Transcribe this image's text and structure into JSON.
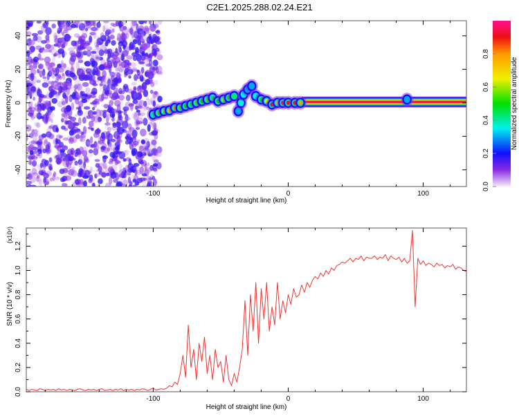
{
  "title": "C2E1.2025.288.02.24.E21",
  "chart_data": [
    {
      "type": "heatmap",
      "name": "spectrogram",
      "xlabel": "Height of straight line (km)",
      "ylabel": "Frequency (Hz)",
      "xlim": [
        -194,
        132
      ],
      "ylim": [
        -50,
        49
      ],
      "xticks": [
        -100,
        0,
        100
      ],
      "xtick_labels": [
        "-100",
        "0",
        "100"
      ],
      "yticks": [
        40,
        20,
        0,
        -20,
        -40
      ],
      "ytick_labels": [
        "40",
        "20",
        "0",
        "-20",
        "-40"
      ],
      "colorbar": {
        "label": "Normalized spectral amplitude",
        "range": [
          0,
          1
        ],
        "ticks": [
          0.0,
          0.2,
          0.4,
          0.6,
          0.8
        ],
        "tick_labels": [
          "0.0",
          "0.2",
          "0.4",
          "0.6",
          "0.8"
        ]
      },
      "noise_region": {
        "x_range": [
          -194,
          -95
        ],
        "freq_range": [
          -50,
          49
        ],
        "amplitude_max": 0.15
      },
      "ridge": [
        [
          -100,
          -7,
          0.4
        ],
        [
          -96,
          -6,
          0.55
        ],
        [
          -92,
          -5,
          0.6
        ],
        [
          -88,
          -4.5,
          0.75
        ],
        [
          -84,
          -3,
          0.8
        ],
        [
          -80,
          -3,
          0.55
        ],
        [
          -76,
          -2,
          0.5
        ],
        [
          -72,
          -1,
          0.45
        ],
        [
          -68,
          0,
          0.55
        ],
        [
          -64,
          1,
          0.5
        ],
        [
          -60,
          2,
          0.55
        ],
        [
          -56,
          3,
          0.45
        ],
        [
          -52,
          1,
          0.5
        ],
        [
          -48,
          2,
          0.6
        ],
        [
          -44,
          3,
          0.5
        ],
        [
          -40,
          4,
          0.45
        ],
        [
          -37,
          -5,
          0.3
        ],
        [
          -35,
          0,
          0.35
        ],
        [
          -33,
          5,
          0.35
        ],
        [
          -30,
          8,
          0.3
        ],
        [
          -27,
          10,
          0.3
        ],
        [
          -24,
          4,
          0.35
        ],
        [
          -20,
          2,
          0.5
        ],
        [
          -16,
          1,
          0.65
        ],
        [
          -12,
          -1,
          0.9
        ],
        [
          -8,
          0,
          0.75
        ],
        [
          -4,
          0,
          0.95
        ],
        [
          0,
          0,
          0.9
        ],
        [
          5,
          0,
          0.9
        ],
        [
          9,
          0,
          0.8
        ],
        [
          88,
          2,
          0.3
        ]
      ],
      "band": {
        "x_range": [
          10,
          132
        ],
        "freq": 0.5,
        "amplitude": 0.95
      }
    },
    {
      "type": "line",
      "name": "snr",
      "xlabel": "Height of straight line (km)",
      "ylabel": "SNR (10 * v/v)",
      "yscale_label": "(x10⁴)",
      "xlim": [
        -194,
        132
      ],
      "ylim": [
        0,
        1.35
      ],
      "xticks": [
        -100,
        0,
        100
      ],
      "xtick_labels": [
        "-100",
        "0",
        "100"
      ],
      "yticks": [
        0.0,
        0.2,
        0.4,
        0.6,
        0.8,
        1.0,
        1.2
      ],
      "ytick_labels": [
        "0.0",
        "0.2",
        "0.4",
        "0.6",
        "0.8",
        "1.0",
        "1.2"
      ],
      "color": "#ee3333",
      "x_start": -194,
      "x_step": 2,
      "values": [
        0.02,
        0.01,
        0.02,
        0.015,
        0.01,
        0.025,
        0.02,
        0.01,
        0.02,
        0.015,
        0.02,
        0.01,
        0.025,
        0.015,
        0.02,
        0.01,
        0.02,
        0.015,
        0.01,
        0.02,
        0.025,
        0.015,
        0.01,
        0.02,
        0.015,
        0.02,
        0.01,
        0.02,
        0.025,
        0.01,
        0.015,
        0.02,
        0.01,
        0.02,
        0.015,
        0.025,
        0.01,
        0.02,
        0.015,
        0.02,
        0.01,
        0.02,
        0.015,
        0.025,
        0.02,
        0.01,
        0.02,
        0.03,
        0.015,
        0.02,
        0.025,
        0.02,
        0.03,
        0.05,
        0.04,
        0.08,
        0.06,
        0.15,
        0.3,
        0.12,
        0.55,
        0.2,
        0.35,
        0.1,
        0.4,
        0.25,
        0.45,
        0.15,
        0.3,
        0.1,
        0.35,
        0.2,
        0.25,
        0.08,
        0.3,
        0.1,
        0.05,
        0.15,
        0.08,
        0.2,
        0.35,
        0.75,
        0.3,
        0.8,
        0.5,
        0.9,
        0.4,
        0.85,
        0.6,
        0.9,
        0.5,
        0.7,
        0.55,
        0.9,
        0.6,
        0.75,
        0.65,
        0.8,
        0.72,
        0.85,
        0.78,
        0.8,
        0.88,
        0.82,
        0.9,
        0.86,
        0.92,
        0.95,
        0.93,
        0.98,
        0.95,
        1.0,
        0.97,
        1.02,
        1.0,
        1.04,
        1.05,
        1.07,
        1.06,
        1.08,
        1.1,
        1.07,
        1.1,
        1.09,
        1.12,
        1.08,
        1.11,
        1.1,
        1.1,
        1.12,
        1.09,
        1.11,
        1.1,
        1.13,
        1.08,
        1.12,
        1.1,
        1.09,
        1.11,
        1.07,
        1.1,
        1.06,
        1.08,
        1.33,
        0.7,
        1.1,
        1.05,
        1.08,
        1.04,
        1.06,
        1.05,
        1.03,
        1.06,
        1.04,
        1.05,
        1.02,
        1.04,
        1.03,
        1.05,
        1.01,
        1.03,
        1.02,
        1.0,
        0.99
      ]
    }
  ]
}
